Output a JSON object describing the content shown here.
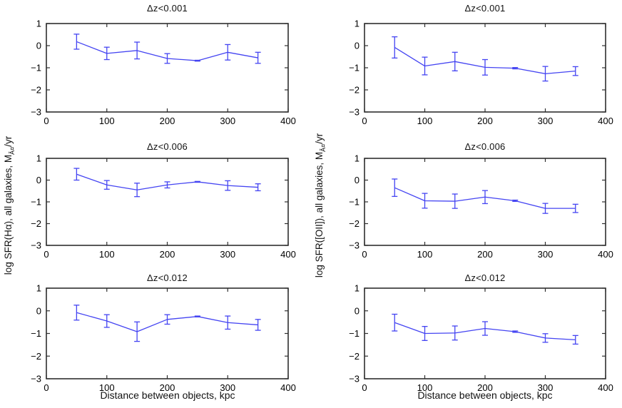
{
  "figure": {
    "background": "#ffffff",
    "line_color": "#4444f2",
    "axis_color": "#2e2e2e",
    "text_color": "#000000",
    "xlabel": "Distance between objects, kpc",
    "ylabel_left": {
      "prefix": "log SFR(Hα), all galaxies, M",
      "sub": "Â¤",
      "suffix": "/yr"
    },
    "ylabel_right": {
      "prefix": "log SFR([OII]), all galaxies, M",
      "sub": "Â¤",
      "suffix": "/yr"
    }
  },
  "chart_data": [
    {
      "type": "line",
      "series_name": "log SFR(Hα), all galaxies",
      "title": "Δz<0.001",
      "x": [
        50,
        100,
        150,
        200,
        250,
        300,
        350
      ],
      "y": [
        0.18,
        -0.35,
        -0.22,
        -0.58,
        -0.68,
        -0.3,
        -0.55
      ],
      "yerr": [
        0.34,
        0.28,
        0.38,
        0.22,
        0.02,
        0.35,
        0.25
      ],
      "xlim": [
        0,
        400
      ],
      "ylim": [
        -3,
        1
      ],
      "x_ticks": [
        0,
        100,
        200,
        300,
        400
      ],
      "y_ticks": [
        1,
        0,
        -1,
        -2,
        -3
      ],
      "grid": false,
      "legend": "none"
    },
    {
      "type": "line",
      "series_name": "log SFR([OII]), all galaxies",
      "title": "Δz<0.001",
      "x": [
        50,
        100,
        150,
        200,
        250,
        300,
        350
      ],
      "y": [
        -0.08,
        -0.92,
        -0.72,
        -0.98,
        -1.02,
        -1.27,
        -1.15
      ],
      "yerr": [
        0.48,
        0.4,
        0.42,
        0.35,
        0.03,
        0.33,
        0.2
      ],
      "xlim": [
        0,
        400
      ],
      "ylim": [
        -3,
        1
      ],
      "x_ticks": [
        0,
        100,
        200,
        300,
        400
      ],
      "y_ticks": [
        1,
        0,
        -1,
        -2,
        -3
      ],
      "grid": false,
      "legend": "none"
    },
    {
      "type": "line",
      "series_name": "log SFR(Hα), all galaxies",
      "title": "Δz<0.006",
      "x": [
        50,
        100,
        150,
        200,
        250,
        300,
        350
      ],
      "y": [
        0.27,
        -0.22,
        -0.45,
        -0.22,
        -0.08,
        -0.25,
        -0.33
      ],
      "yerr": [
        0.27,
        0.2,
        0.31,
        0.14,
        0.02,
        0.22,
        0.16
      ],
      "xlim": [
        0,
        400
      ],
      "ylim": [
        -3,
        1
      ],
      "x_ticks": [
        0,
        100,
        200,
        300,
        400
      ],
      "y_ticks": [
        1,
        0,
        -1,
        -2,
        -3
      ],
      "grid": false,
      "legend": "none"
    },
    {
      "type": "line",
      "series_name": "log SFR([OII]), all galaxies",
      "title": "Δz<0.006",
      "x": [
        50,
        100,
        150,
        200,
        250,
        300,
        350
      ],
      "y": [
        -0.35,
        -0.95,
        -0.97,
        -0.78,
        -0.95,
        -1.3,
        -1.3
      ],
      "yerr": [
        0.4,
        0.34,
        0.33,
        0.3,
        0.03,
        0.23,
        0.19
      ],
      "xlim": [
        0,
        400
      ],
      "ylim": [
        -3,
        1
      ],
      "x_ticks": [
        0,
        100,
        200,
        300,
        400
      ],
      "y_ticks": [
        1,
        0,
        -1,
        -2,
        -3
      ],
      "grid": false,
      "legend": "none"
    },
    {
      "type": "line",
      "series_name": "log SFR(Hα), all galaxies",
      "title": "Δz<0.012",
      "x": [
        50,
        100,
        150,
        200,
        250,
        300,
        350
      ],
      "y": [
        -0.08,
        -0.45,
        -0.92,
        -0.38,
        -0.25,
        -0.52,
        -0.62
      ],
      "yerr": [
        0.33,
        0.28,
        0.43,
        0.21,
        0.02,
        0.29,
        0.24
      ],
      "xlim": [
        0,
        400
      ],
      "ylim": [
        -3,
        1
      ],
      "x_ticks": [
        0,
        100,
        200,
        300,
        400
      ],
      "y_ticks": [
        1,
        0,
        -1,
        -2,
        -3
      ],
      "grid": false,
      "legend": "none"
    },
    {
      "type": "line",
      "series_name": "log SFR([OII]), all galaxies",
      "title": "Δz<0.012",
      "x": [
        50,
        100,
        150,
        200,
        250,
        300,
        350
      ],
      "y": [
        -0.52,
        -1.0,
        -0.98,
        -0.78,
        -0.92,
        -1.2,
        -1.28
      ],
      "yerr": [
        0.37,
        0.31,
        0.31,
        0.3,
        0.03,
        0.19,
        0.19
      ],
      "xlim": [
        0,
        400
      ],
      "ylim": [
        -3,
        1
      ],
      "x_ticks": [
        0,
        100,
        200,
        300,
        400
      ],
      "y_ticks": [
        1,
        0,
        -1,
        -2,
        -3
      ],
      "grid": false,
      "legend": "none"
    }
  ]
}
